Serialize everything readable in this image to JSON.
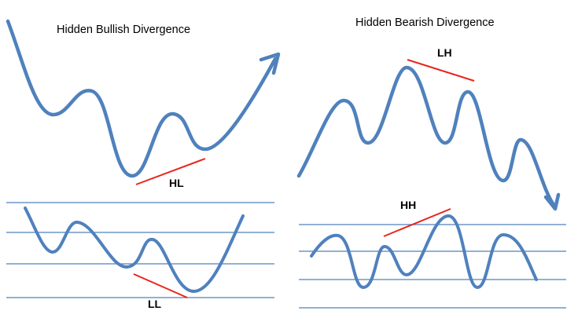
{
  "colors": {
    "curve": "#4f81bd",
    "grid": "#4f81bd",
    "divergence": "#e8261d",
    "text": "#000000"
  },
  "icons": [
    "arrow-up-right-icon",
    "arrow-down-right-icon"
  ],
  "panels": [
    {
      "id": "bullish",
      "title": "Hidden Bullish Divergence",
      "price_label": "HL",
      "oscillator_label": "LL",
      "trend": "up"
    },
    {
      "id": "bearish",
      "title": "Hidden Bearish Divergence",
      "price_label": "LH",
      "oscillator_label": "HH",
      "trend": "down"
    }
  ]
}
